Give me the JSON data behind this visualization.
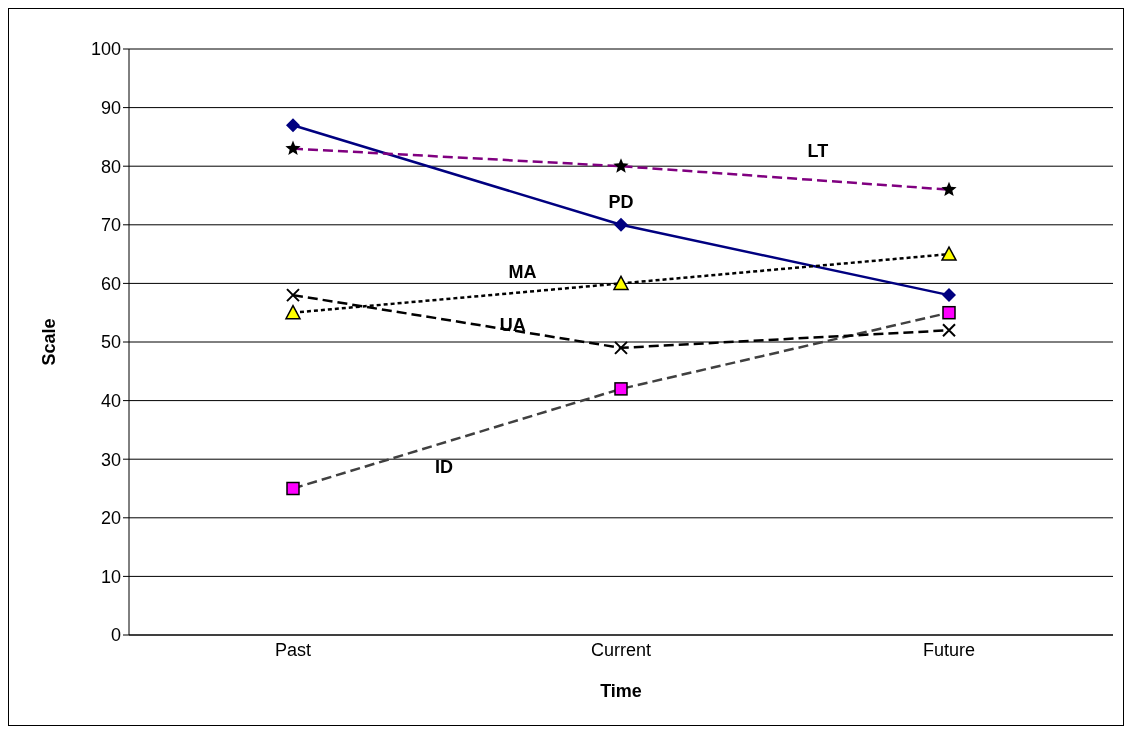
{
  "chart_data": {
    "type": "line",
    "xlabel": "Time",
    "ylabel": "Scale",
    "categories": [
      "Past",
      "Current",
      "Future"
    ],
    "ylim": [
      0,
      100
    ],
    "yticks": [
      0,
      10,
      20,
      30,
      40,
      50,
      60,
      70,
      80,
      90,
      100
    ],
    "grid": "y",
    "legend": false,
    "series": [
      {
        "name": "PD",
        "color": "#000080",
        "values": [
          87,
          70,
          58
        ],
        "marker": "diamond",
        "line_style": "solid"
      },
      {
        "name": "ID",
        "color": "#404040",
        "values": [
          25,
          42,
          55
        ],
        "marker": "square",
        "line_style": "dashed"
      },
      {
        "name": "MA",
        "color": "#000000",
        "values": [
          55,
          60,
          65
        ],
        "marker": "triangle",
        "line_style": "dotted"
      },
      {
        "name": "UA",
        "color": "#000000",
        "values": [
          58,
          49,
          52
        ],
        "marker": "cross",
        "line_style": "dashed"
      },
      {
        "name": "LT",
        "color": "#800080",
        "values": [
          83,
          80,
          76
        ],
        "marker": "star",
        "line_style": "dashed"
      }
    ]
  }
}
